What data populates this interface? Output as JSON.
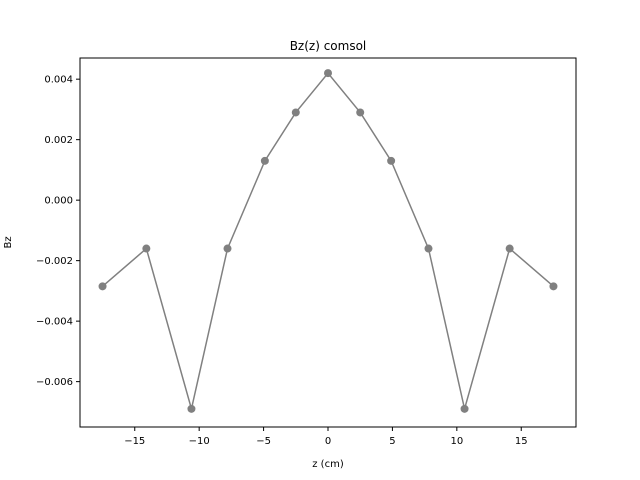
{
  "chart_data": {
    "type": "line",
    "title": "Bz(z) comsol",
    "xlabel": "z (cm)",
    "ylabel": "Bz",
    "xlim": [
      -19.25,
      19.25
    ],
    "ylim": [
      -0.0075,
      0.0047
    ],
    "xticks": [
      -15,
      -10,
      -5,
      0,
      5,
      10,
      15
    ],
    "xtick_labels": [
      "−15",
      "−10",
      "−5",
      "0",
      "5",
      "10",
      "15"
    ],
    "yticks": [
      -0.006,
      -0.004,
      -0.002,
      0.0,
      0.002,
      0.004
    ],
    "ytick_labels": [
      "−0.006",
      "−0.004",
      "−0.002",
      "0.000",
      "0.002",
      "0.004"
    ],
    "grid": false,
    "series": [
      {
        "color": "#808080",
        "marker": "circle",
        "x": [
          -17.5,
          -14.1,
          -10.6,
          -7.8,
          -4.9,
          -2.5,
          0,
          2.5,
          4.9,
          7.8,
          10.6,
          14.1,
          17.5
        ],
        "y": [
          -0.00285,
          -0.0016,
          -0.0069,
          -0.0016,
          0.0013,
          0.0029,
          0.0042,
          0.0029,
          0.0013,
          -0.0016,
          -0.0069,
          -0.0016,
          -0.00285
        ]
      }
    ]
  }
}
